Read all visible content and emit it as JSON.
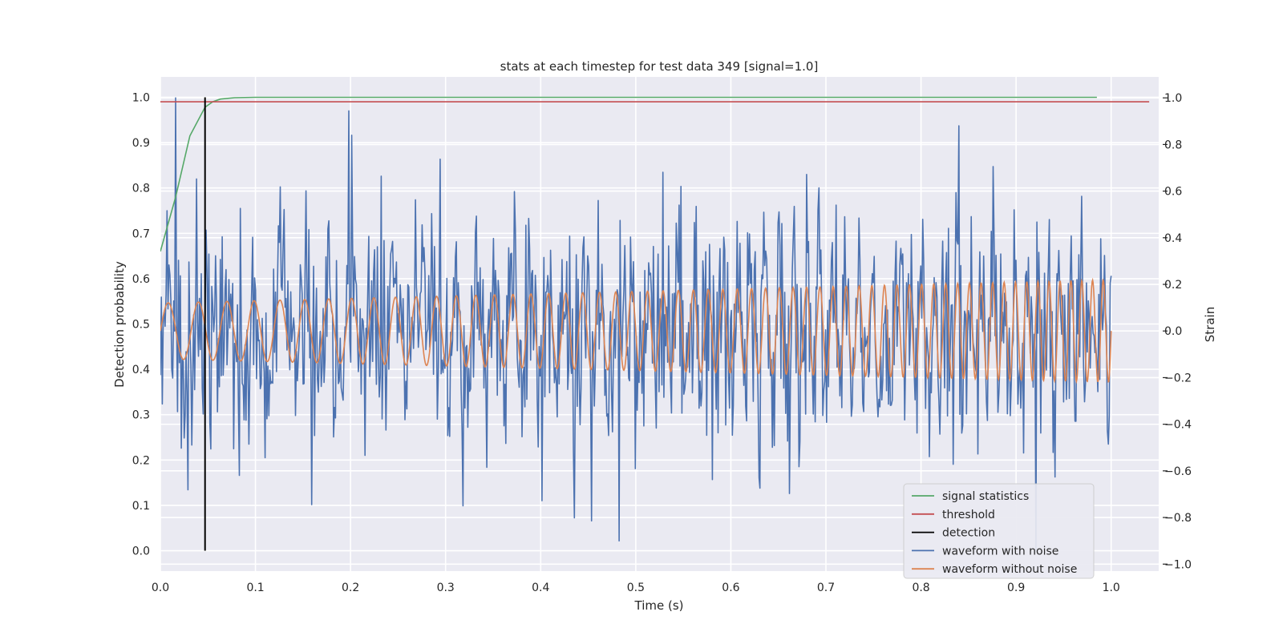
{
  "chart_data": {
    "type": "line",
    "title": "stats at each timestep for test data 349 [signal=1.0]",
    "xlabel": "Time (s)",
    "ylabel_left": "Detection probability",
    "ylabel_right": "Strain",
    "xlim": [
      0.0,
      1.05
    ],
    "ylim_left": [
      -0.045,
      1.045
    ],
    "ylim_right": [
      -1.03,
      1.09
    ],
    "x_ticks": [
      "0.0",
      "0.1",
      "0.2",
      "0.3",
      "0.4",
      "0.5",
      "0.6",
      "0.7",
      "0.8",
      "0.9",
      "1.0"
    ],
    "y_ticks_left": [
      "0.0",
      "0.1",
      "0.2",
      "0.3",
      "0.4",
      "0.5",
      "0.6",
      "0.7",
      "0.8",
      "0.9",
      "1.0"
    ],
    "y_ticks_right": [
      "−1.0",
      "−0.8",
      "−0.6",
      "−0.4",
      "−0.2",
      "0.0",
      "0.2",
      "0.4",
      "0.6",
      "0.8",
      "1.0"
    ],
    "grid": true,
    "legend_position": "lower-right",
    "series": [
      {
        "name": "signal statistics",
        "axis": "left",
        "color": "#55a868",
        "x": [
          0.0,
          0.016,
          0.031,
          0.047,
          0.055,
          0.063,
          0.078,
          0.1,
          0.2,
          0.4,
          0.6,
          0.8,
          0.985
        ],
        "y": [
          0.66,
          0.78,
          0.915,
          0.978,
          0.99,
          0.996,
          0.999,
          1.0,
          1.0,
          1.0,
          1.0,
          1.0,
          1.0
        ]
      },
      {
        "name": "threshold",
        "axis": "left",
        "color": "#c44e52",
        "x": [
          0.0,
          1.04
        ],
        "y": [
          0.99,
          0.99
        ]
      },
      {
        "name": "detection",
        "axis": "left",
        "color": "#000000",
        "x": [
          0.047,
          0.047
        ],
        "y": [
          0.0,
          1.0
        ]
      },
      {
        "name": "waveform with noise",
        "axis": "right",
        "color": "#4c72b0",
        "description": "noisy strain, 0.0–1.0 s, range about −0.9 to 1.0",
        "t_start": 0.0,
        "t_end": 1.0,
        "points": 1000,
        "extremes": [
          [
            0.016,
            1.0
          ],
          [
            0.201,
            0.84
          ],
          [
            0.482,
            -0.9
          ],
          [
            0.84,
            0.88
          ],
          [
            0.921,
            -0.94
          ],
          [
            0.318,
            -0.75
          ]
        ]
      },
      {
        "name": "waveform without noise",
        "axis": "right",
        "color": "#dd8452",
        "description": "clean chirp, amplitude grows from about 0.12 to 0.22, frequency ~30→90 Hz",
        "t_start": 0.0,
        "t_end": 1.0,
        "amplitude_start": 0.12,
        "amplitude_end": 0.22,
        "freq_start": 30,
        "freq_end": 90
      }
    ]
  }
}
